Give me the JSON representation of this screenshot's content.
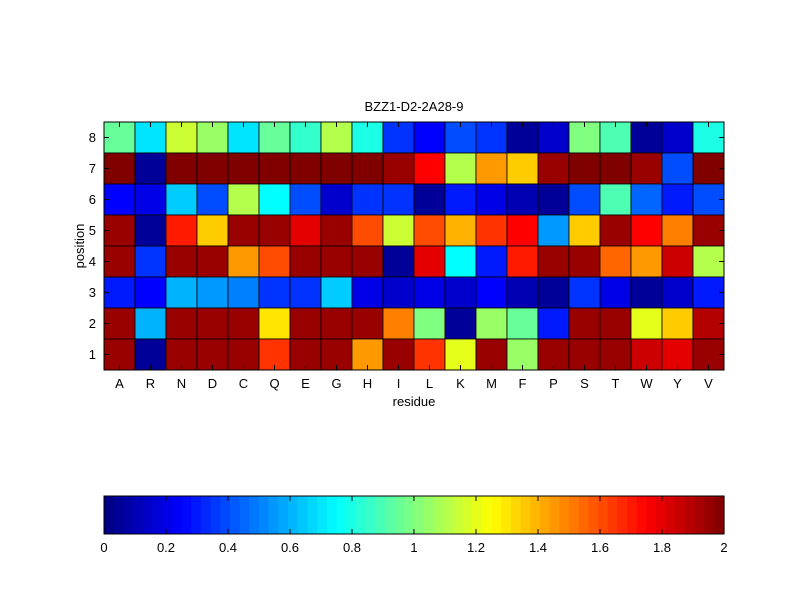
{
  "chart_data": {
    "type": "heatmap",
    "title": "BZZ1-D2-2A28-9",
    "xlabel": "residue",
    "ylabel": "position",
    "x_categories": [
      "A",
      "R",
      "N",
      "D",
      "C",
      "Q",
      "E",
      "G",
      "H",
      "I",
      "L",
      "K",
      "M",
      "F",
      "P",
      "S",
      "T",
      "W",
      "Y",
      "V"
    ],
    "y_categories": [
      "8",
      "7",
      "6",
      "5",
      "4",
      "3",
      "2",
      "1"
    ],
    "values": [
      [
        0.95,
        0.7,
        1.15,
        1.05,
        0.7,
        0.95,
        0.85,
        1.1,
        0.8,
        0.35,
        0.25,
        0.4,
        0.35,
        0.05,
        0.15,
        1.0,
        0.9,
        0.05,
        0.15,
        0.8
      ],
      [
        2.0,
        0.05,
        2.0,
        2.0,
        2.0,
        2.0,
        2.0,
        2.0,
        2.0,
        1.95,
        1.75,
        1.1,
        1.45,
        1.35,
        1.95,
        2.0,
        2.0,
        1.95,
        0.4,
        2.0
      ],
      [
        0.25,
        0.2,
        0.65,
        0.4,
        1.1,
        0.75,
        0.4,
        0.15,
        0.35,
        0.35,
        0.05,
        0.3,
        0.2,
        0.1,
        0.05,
        0.4,
        0.9,
        0.45,
        0.3,
        0.4
      ],
      [
        1.95,
        0.05,
        1.7,
        1.35,
        1.95,
        1.95,
        1.8,
        1.95,
        1.6,
        1.15,
        1.6,
        1.4,
        1.65,
        1.75,
        0.55,
        1.35,
        1.95,
        1.75,
        1.5,
        1.95
      ],
      [
        1.95,
        0.35,
        1.95,
        1.95,
        1.45,
        1.6,
        1.95,
        1.95,
        1.95,
        0.05,
        1.8,
        0.75,
        0.3,
        1.7,
        1.95,
        1.95,
        1.55,
        1.45,
        1.85,
        1.1
      ],
      [
        0.3,
        0.25,
        0.6,
        0.55,
        0.5,
        0.35,
        0.35,
        0.65,
        0.2,
        0.15,
        0.2,
        0.15,
        0.25,
        0.1,
        0.05,
        0.35,
        0.2,
        0.05,
        0.15,
        0.3
      ],
      [
        1.95,
        0.6,
        1.95,
        1.95,
        1.95,
        1.3,
        1.95,
        1.95,
        1.95,
        1.5,
        1.0,
        0.05,
        1.05,
        0.95,
        0.3,
        1.95,
        1.95,
        1.2,
        1.35,
        1.9
      ],
      [
        1.95,
        0.05,
        1.95,
        1.95,
        1.95,
        1.65,
        1.95,
        1.95,
        1.45,
        1.95,
        1.65,
        1.2,
        1.95,
        1.05,
        1.95,
        1.95,
        1.95,
        1.85,
        1.8,
        1.95
      ]
    ],
    "colormap": "jet",
    "clim": [
      0,
      2
    ],
    "colorbar": {
      "orientation": "horizontal",
      "placement": "bottom",
      "ticks": [
        "0",
        "0.2",
        "0.4",
        "0.6",
        "0.8",
        "1",
        "1.2",
        "1.4",
        "1.6",
        "1.8",
        "2"
      ]
    }
  }
}
